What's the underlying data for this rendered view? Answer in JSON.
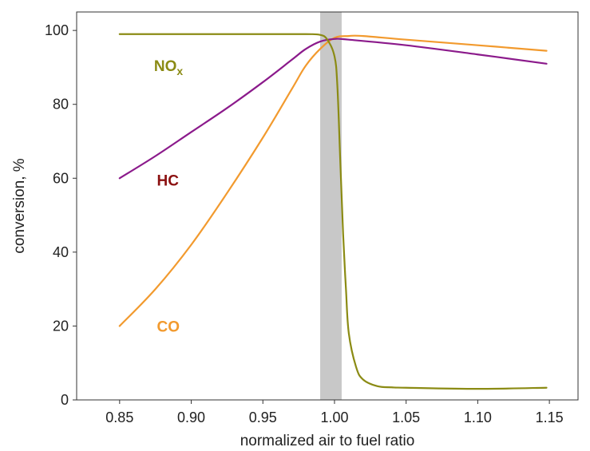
{
  "chart_data": {
    "type": "line",
    "xlabel": "normalized air to fuel ratio",
    "ylabel": "conversion, %",
    "xlim": [
      0.82,
      1.17
    ],
    "ylim": [
      0,
      105
    ],
    "x_ticks": [
      "0.85",
      "0.90",
      "0.95",
      "1.00",
      "1.05",
      "1.10",
      "1.15"
    ],
    "y_ticks": [
      "0",
      "20",
      "40",
      "60",
      "80",
      "100"
    ],
    "grid": false,
    "highlight_band": {
      "x_from": 0.99,
      "x_to": 1.005,
      "color": "#c8c8c8"
    },
    "series": [
      {
        "name": "NOx",
        "label_main": "NO",
        "label_sub": "x",
        "label_at": [
          0.874,
          90.5
        ],
        "color": "#8b8b14",
        "label_color": "#8b8b14",
        "x": [
          0.85,
          0.9,
          0.95,
          0.98,
          0.99,
          0.995,
          1.0,
          1.002,
          1.004,
          1.006,
          1.008,
          1.01,
          1.015,
          1.02,
          1.03,
          1.04,
          1.05,
          1.1,
          1.148
        ],
        "y": [
          99,
          99,
          99,
          99,
          98.8,
          97.5,
          93,
          85,
          65,
          45,
          30,
          18,
          9,
          5.5,
          3.7,
          3.4,
          3.3,
          3.0,
          3.3
        ]
      },
      {
        "name": "HC",
        "label_at": [
          0.876,
          59.5
        ],
        "color": "#8b1a8b",
        "label_color": "#8b1010",
        "x": [
          0.85,
          0.875,
          0.9,
          0.925,
          0.95,
          0.97,
          0.98,
          0.99,
          1.0,
          1.01,
          1.05,
          1.1,
          1.148
        ],
        "y": [
          60,
          66,
          72.5,
          79,
          86,
          92,
          95,
          97,
          97.7,
          97.5,
          96,
          93.5,
          91
        ]
      },
      {
        "name": "CO",
        "label_at": [
          0.876,
          20
        ],
        "color": "#f29a2e",
        "label_color": "#f29a2e",
        "x": [
          0.85,
          0.875,
          0.9,
          0.925,
          0.95,
          0.97,
          0.98,
          0.99,
          1.0,
          1.01,
          1.02,
          1.05,
          1.1,
          1.148
        ],
        "y": [
          20,
          30,
          42,
          56,
          71,
          84,
          90.5,
          95,
          98,
          98.5,
          98.5,
          97.5,
          96,
          94.5
        ]
      }
    ]
  }
}
